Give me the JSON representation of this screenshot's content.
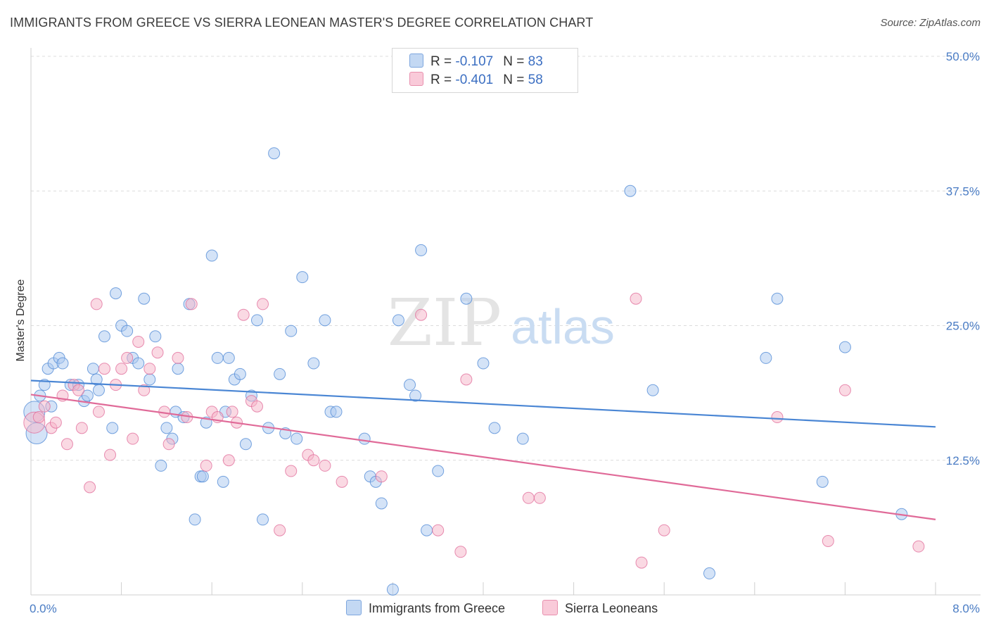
{
  "header": {
    "title": "IMMIGRANTS FROM GREECE VS SIERRA LEONEAN MASTER'S DEGREE CORRELATION CHART",
    "source": "Source: ZipAtlas.com"
  },
  "watermark": {
    "zip": "ZIP",
    "atlas": "atlas"
  },
  "legend_top": {
    "rows": [
      {
        "r_label": "R = ",
        "r_value": "-0.107",
        "n_label": "N = ",
        "n_value": "83",
        "color": "#a9c8f0"
      },
      {
        "r_label": "R = ",
        "r_value": "-0.401",
        "n_label": "N = ",
        "n_value": "58",
        "color": "#f5b3c8"
      }
    ]
  },
  "legend_bottom": {
    "items": [
      {
        "label": "Immigrants from Greece",
        "color": "#a9c8f0"
      },
      {
        "label": "Sierra Leoneans",
        "color": "#f5b3c8"
      }
    ]
  },
  "chart_data": {
    "type": "scatter",
    "title": "IMMIGRANTS FROM GREECE VS SIERRA LEONEAN MASTER'S DEGREE CORRELATION CHART",
    "ylabel": "Master's Degree",
    "xlabel": "",
    "xlim": [
      0,
      8
    ],
    "ylim": [
      0,
      50
    ],
    "y_ticks": [
      12.5,
      25.0,
      37.5,
      50.0
    ],
    "y_tick_labels": [
      "12.5%",
      "25.0%",
      "37.5%",
      "50.0%"
    ],
    "x_tick_labels": [
      "0.0%",
      "8.0%"
    ],
    "grid": true,
    "legend_placement": "top-center and bottom",
    "series": [
      {
        "name": "Immigrants from Greece",
        "color": "#4a86d4",
        "fill": "#a9c8f0",
        "trend": {
          "x": [
            0,
            8
          ],
          "y": [
            19.9,
            15.6
          ]
        },
        "points": [
          {
            "x": 0.03,
            "y": 17.0,
            "big": true
          },
          {
            "x": 0.05,
            "y": 15.0,
            "big": true
          },
          {
            "x": 0.08,
            "y": 18.5
          },
          {
            "x": 0.12,
            "y": 19.5
          },
          {
            "x": 0.15,
            "y": 21.0
          },
          {
            "x": 0.18,
            "y": 17.5
          },
          {
            "x": 0.2,
            "y": 21.5
          },
          {
            "x": 0.25,
            "y": 22.0
          },
          {
            "x": 0.28,
            "y": 21.5
          },
          {
            "x": 0.35,
            "y": 19.5
          },
          {
            "x": 0.42,
            "y": 19.5
          },
          {
            "x": 0.47,
            "y": 18.0
          },
          {
            "x": 0.5,
            "y": 18.5
          },
          {
            "x": 0.55,
            "y": 21.0
          },
          {
            "x": 0.58,
            "y": 20.0
          },
          {
            "x": 0.6,
            "y": 19.0
          },
          {
            "x": 0.65,
            "y": 24.0
          },
          {
            "x": 0.72,
            "y": 15.5
          },
          {
            "x": 0.75,
            "y": 28.0
          },
          {
            "x": 0.8,
            "y": 25.0
          },
          {
            "x": 0.85,
            "y": 24.5
          },
          {
            "x": 0.9,
            "y": 22.0
          },
          {
            "x": 0.95,
            "y": 21.5
          },
          {
            "x": 1.0,
            "y": 27.5
          },
          {
            "x": 1.05,
            "y": 20.0
          },
          {
            "x": 1.1,
            "y": 24.0
          },
          {
            "x": 1.15,
            "y": 12.0
          },
          {
            "x": 1.2,
            "y": 15.5
          },
          {
            "x": 1.25,
            "y": 14.5
          },
          {
            "x": 1.28,
            "y": 17.0
          },
          {
            "x": 1.35,
            "y": 16.5
          },
          {
            "x": 1.4,
            "y": 27.0
          },
          {
            "x": 1.45,
            "y": 7.0
          },
          {
            "x": 1.5,
            "y": 11.0
          },
          {
            "x": 1.52,
            "y": 11.0
          },
          {
            "x": 1.55,
            "y": 16.0
          },
          {
            "x": 1.6,
            "y": 31.5
          },
          {
            "x": 1.65,
            "y": 22.0
          },
          {
            "x": 1.7,
            "y": 10.5
          },
          {
            "x": 1.72,
            "y": 17.0
          },
          {
            "x": 1.75,
            "y": 22.0
          },
          {
            "x": 1.8,
            "y": 20.0
          },
          {
            "x": 1.85,
            "y": 20.5
          },
          {
            "x": 1.9,
            "y": 14.0
          },
          {
            "x": 1.95,
            "y": 18.5
          },
          {
            "x": 2.0,
            "y": 25.5
          },
          {
            "x": 2.05,
            "y": 7.0
          },
          {
            "x": 2.1,
            "y": 15.5
          },
          {
            "x": 2.15,
            "y": 41.0
          },
          {
            "x": 2.2,
            "y": 20.5
          },
          {
            "x": 2.25,
            "y": 15.0
          },
          {
            "x": 2.3,
            "y": 24.5
          },
          {
            "x": 2.35,
            "y": 14.5
          },
          {
            "x": 2.4,
            "y": 29.5
          },
          {
            "x": 2.5,
            "y": 21.5
          },
          {
            "x": 2.6,
            "y": 25.5
          },
          {
            "x": 2.65,
            "y": 17.0
          },
          {
            "x": 2.95,
            "y": 14.5
          },
          {
            "x": 3.0,
            "y": 11.0
          },
          {
            "x": 3.05,
            "y": 10.5
          },
          {
            "x": 3.1,
            "y": 8.5
          },
          {
            "x": 3.2,
            "y": 0.5
          },
          {
            "x": 3.25,
            "y": 25.5
          },
          {
            "x": 3.35,
            "y": 19.5
          },
          {
            "x": 3.4,
            "y": 18.5
          },
          {
            "x": 3.45,
            "y": 32.0
          },
          {
            "x": 3.5,
            "y": 6.0
          },
          {
            "x": 3.6,
            "y": 11.5
          },
          {
            "x": 3.85,
            "y": 27.5
          },
          {
            "x": 4.0,
            "y": 21.5
          },
          {
            "x": 4.1,
            "y": 15.5
          },
          {
            "x": 4.35,
            "y": 14.5
          },
          {
            "x": 5.3,
            "y": 37.5
          },
          {
            "x": 5.5,
            "y": 19.0
          },
          {
            "x": 6.0,
            "y": 2.0
          },
          {
            "x": 6.5,
            "y": 22.0
          },
          {
            "x": 6.6,
            "y": 27.5
          },
          {
            "x": 7.0,
            "y": 10.5
          },
          {
            "x": 7.2,
            "y": 23.0
          },
          {
            "x": 7.7,
            "y": 7.5
          },
          {
            "x": 2.7,
            "y": 17.0
          },
          {
            "x": 1.3,
            "y": 21.0
          }
        ]
      },
      {
        "name": "Sierra Leoneans",
        "color": "#e06a98",
        "fill": "#f5b3c8",
        "trend": {
          "x": [
            0,
            8
          ],
          "y": [
            18.6,
            7.0
          ]
        },
        "points": [
          {
            "x": 0.03,
            "y": 16.0,
            "big": true
          },
          {
            "x": 0.07,
            "y": 16.5
          },
          {
            "x": 0.12,
            "y": 17.5
          },
          {
            "x": 0.18,
            "y": 15.5
          },
          {
            "x": 0.22,
            "y": 16.0
          },
          {
            "x": 0.28,
            "y": 18.5
          },
          {
            "x": 0.32,
            "y": 14.0
          },
          {
            "x": 0.38,
            "y": 19.5
          },
          {
            "x": 0.42,
            "y": 19.0
          },
          {
            "x": 0.45,
            "y": 15.5
          },
          {
            "x": 0.52,
            "y": 10.0
          },
          {
            "x": 0.58,
            "y": 27.0
          },
          {
            "x": 0.6,
            "y": 17.0
          },
          {
            "x": 0.65,
            "y": 21.0
          },
          {
            "x": 0.7,
            "y": 13.0
          },
          {
            "x": 0.75,
            "y": 19.5
          },
          {
            "x": 0.8,
            "y": 21.0
          },
          {
            "x": 0.85,
            "y": 22.0
          },
          {
            "x": 0.9,
            "y": 14.5
          },
          {
            "x": 0.95,
            "y": 23.5
          },
          {
            "x": 1.0,
            "y": 19.0
          },
          {
            "x": 1.05,
            "y": 21.0
          },
          {
            "x": 1.12,
            "y": 22.5
          },
          {
            "x": 1.18,
            "y": 17.0
          },
          {
            "x": 1.22,
            "y": 14.0
          },
          {
            "x": 1.3,
            "y": 22.0
          },
          {
            "x": 1.38,
            "y": 16.5
          },
          {
            "x": 1.42,
            "y": 27.0
          },
          {
            "x": 1.55,
            "y": 12.0
          },
          {
            "x": 1.6,
            "y": 17.0
          },
          {
            "x": 1.65,
            "y": 16.5
          },
          {
            "x": 1.75,
            "y": 12.5
          },
          {
            "x": 1.78,
            "y": 17.0
          },
          {
            "x": 1.82,
            "y": 16.0
          },
          {
            "x": 1.88,
            "y": 26.0
          },
          {
            "x": 1.95,
            "y": 18.0
          },
          {
            "x": 2.0,
            "y": 17.5
          },
          {
            "x": 2.05,
            "y": 27.0
          },
          {
            "x": 2.2,
            "y": 6.0
          },
          {
            "x": 2.3,
            "y": 11.5
          },
          {
            "x": 2.45,
            "y": 13.0
          },
          {
            "x": 2.5,
            "y": 12.5
          },
          {
            "x": 2.6,
            "y": 12.0
          },
          {
            "x": 2.75,
            "y": 10.5
          },
          {
            "x": 3.1,
            "y": 11.0
          },
          {
            "x": 3.45,
            "y": 26.0
          },
          {
            "x": 3.6,
            "y": 6.0
          },
          {
            "x": 3.8,
            "y": 4.0
          },
          {
            "x": 3.85,
            "y": 20.0
          },
          {
            "x": 4.4,
            "y": 9.0
          },
          {
            "x": 4.5,
            "y": 9.0
          },
          {
            "x": 5.35,
            "y": 27.5
          },
          {
            "x": 5.4,
            "y": 3.0
          },
          {
            "x": 5.6,
            "y": 6.0
          },
          {
            "x": 6.6,
            "y": 16.5
          },
          {
            "x": 7.05,
            "y": 5.0
          },
          {
            "x": 7.2,
            "y": 19.0
          },
          {
            "x": 7.85,
            "y": 4.5
          }
        ]
      }
    ]
  }
}
